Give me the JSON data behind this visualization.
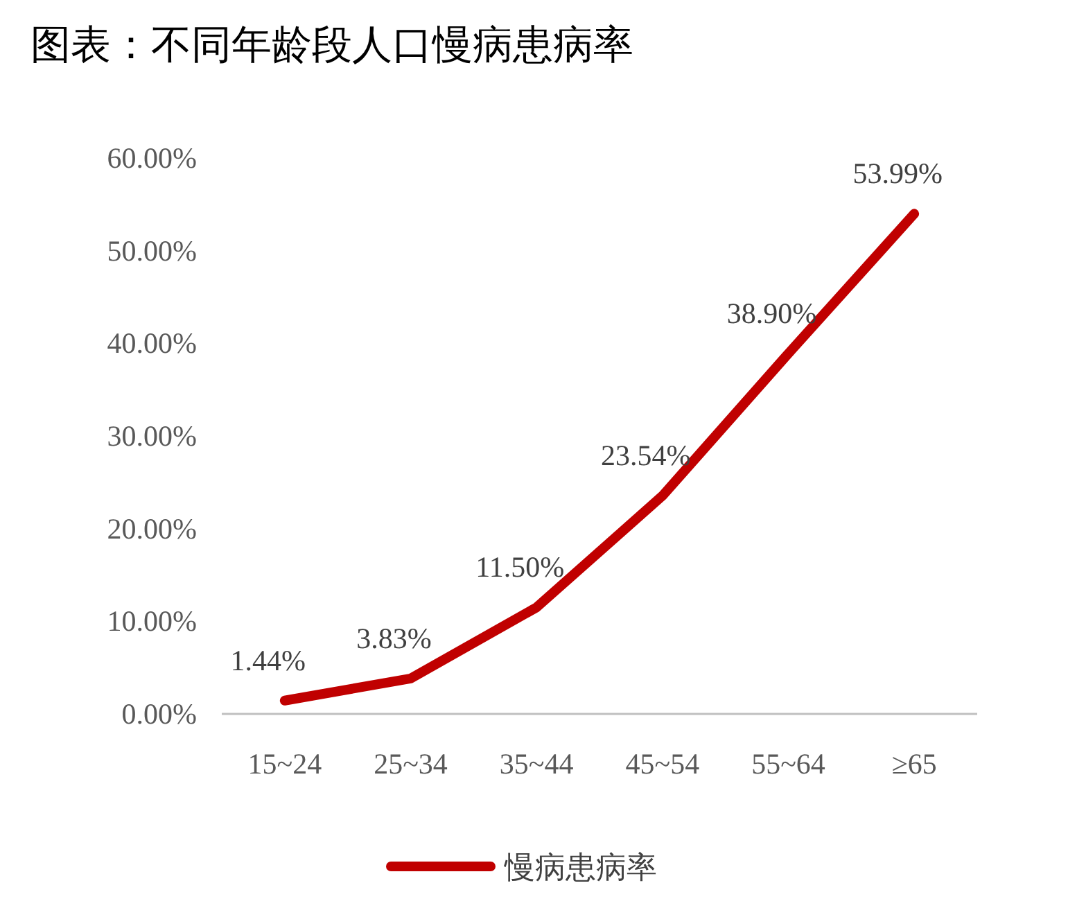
{
  "chart_data": {
    "type": "line",
    "title": "图表：不同年龄段人口慢病患病率",
    "categories": [
      "15~24",
      "25~34",
      "35~44",
      "45~54",
      "55~64",
      "≥65"
    ],
    "series": [
      {
        "name": "慢病患病率",
        "color": "#c00000",
        "values": [
          1.44,
          3.83,
          11.5,
          23.54,
          38.9,
          53.99
        ],
        "value_labels": [
          "1.44%",
          "3.83%",
          "11.50%",
          "23.54%",
          "38.90%",
          "53.99%"
        ]
      }
    ],
    "ylim": [
      0,
      60
    ],
    "yticks": [
      {
        "value": 0,
        "label": "0.00%"
      },
      {
        "value": 10,
        "label": "10.00%"
      },
      {
        "value": 20,
        "label": "20.00%"
      },
      {
        "value": 30,
        "label": "30.00%"
      },
      {
        "value": 40,
        "label": "40.00%"
      },
      {
        "value": 50,
        "label": "50.00%"
      },
      {
        "value": 60,
        "label": "60.00%"
      }
    ],
    "grid": false,
    "legend": "bottom",
    "marker": "none",
    "line_style": "solid"
  }
}
